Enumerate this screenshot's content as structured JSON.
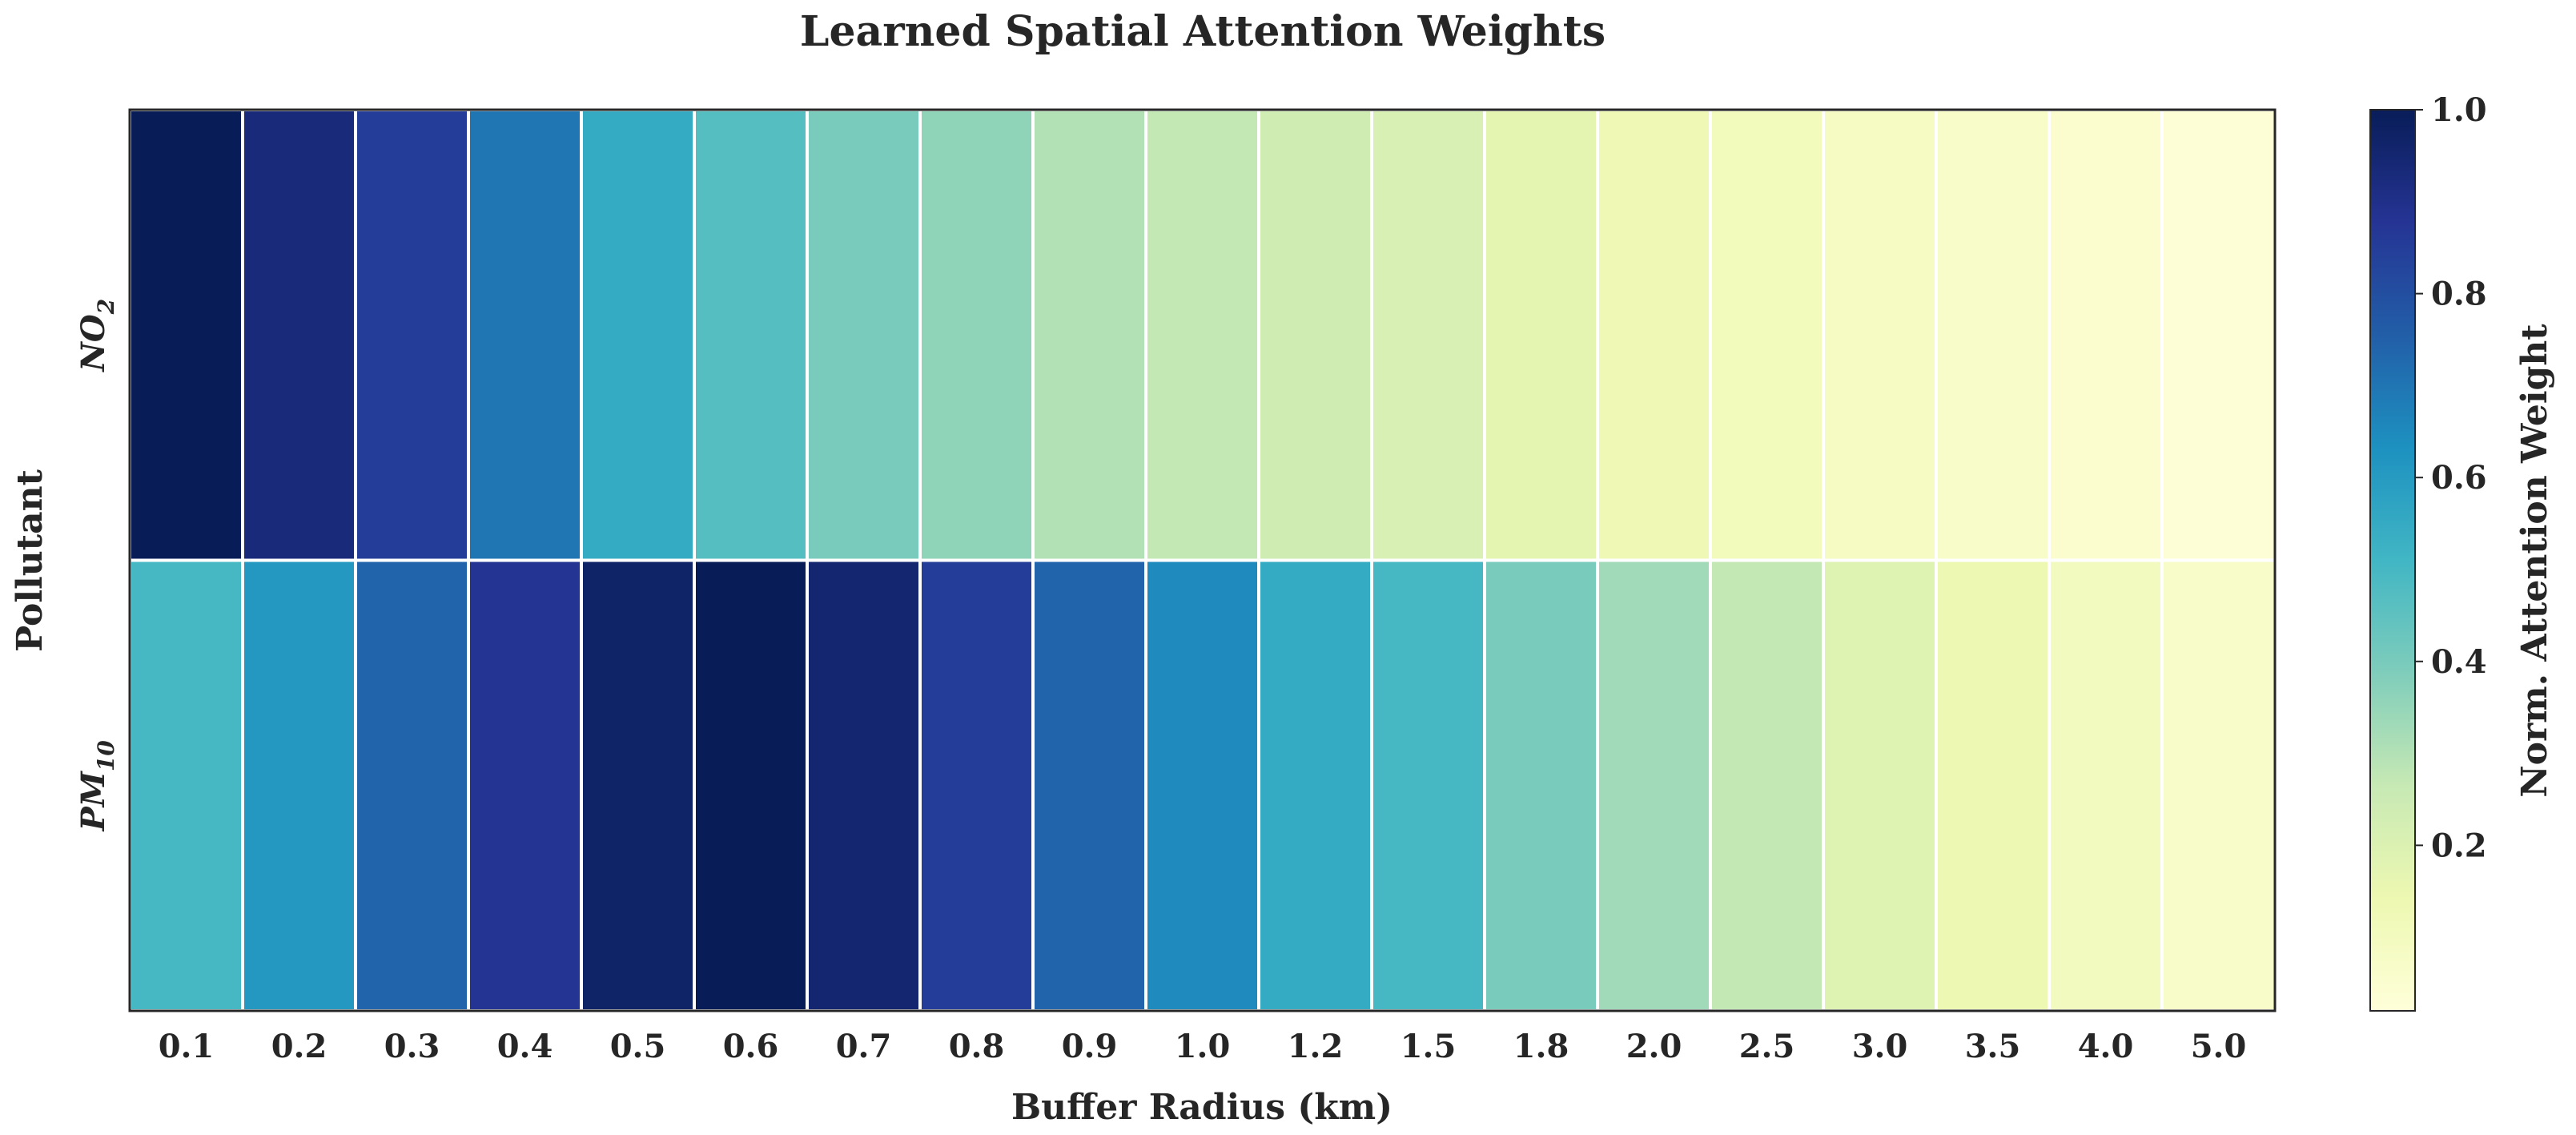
{
  "chart_data": {
    "type": "heatmap",
    "title": "Learned Spatial Attention Weights",
    "xlabel": "Buffer Radius (km)",
    "ylabel": "Pollutant",
    "categories": [
      "0.1",
      "0.2",
      "0.3",
      "0.4",
      "0.5",
      "0.6",
      "0.7",
      "0.8",
      "0.9",
      "1.0",
      "1.2",
      "1.5",
      "1.8",
      "2.0",
      "2.5",
      "3.0",
      "3.5",
      "4.0",
      "5.0"
    ],
    "rows": [
      {
        "label_main": "NO",
        "label_sub": "2"
      },
      {
        "label_main": "PM",
        "label_sub": "10"
      }
    ],
    "values": [
      [
        1.0,
        0.93,
        0.85,
        0.7,
        0.55,
        0.47,
        0.4,
        0.36,
        0.3,
        0.27,
        0.24,
        0.21,
        0.17,
        0.13,
        0.11,
        0.09,
        0.07,
        0.05,
        0.03
      ],
      [
        0.5,
        0.61,
        0.74,
        0.88,
        0.97,
        1.0,
        0.95,
        0.85,
        0.74,
        0.65,
        0.55,
        0.5,
        0.4,
        0.33,
        0.27,
        0.19,
        0.14,
        0.1,
        0.07
      ]
    ],
    "colorbar": {
      "label": "Norm. Attention Weight",
      "range": [
        0.02,
        1.0
      ],
      "ticks": [
        "0.2",
        "0.4",
        "0.6",
        "0.8",
        "1.0"
      ],
      "colormap": "YlGnBu"
    },
    "colormap_stops": [
      "#ffffd9",
      "#edf8b1",
      "#c7e9b4",
      "#7fcdbb",
      "#41b6c4",
      "#1d91c0",
      "#225ea8",
      "#253494",
      "#081d58"
    ]
  }
}
